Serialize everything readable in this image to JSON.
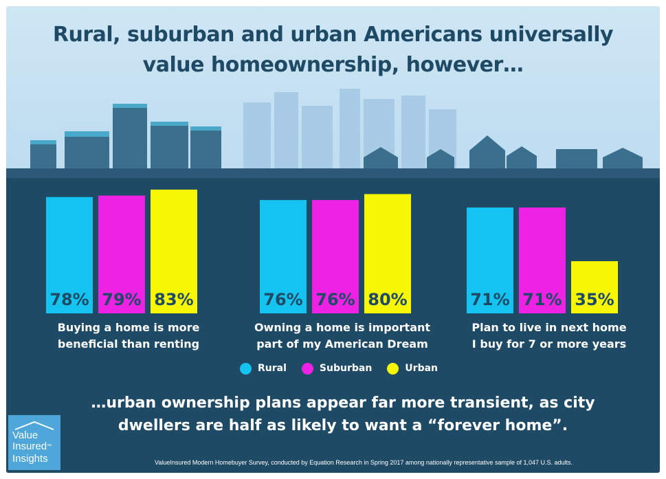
{
  "title": "Rural, suburban and urban Americans universally value homeownership, however…",
  "conclusion": "…urban ownership plans appear far more transient, as city dwellers are half as likely to want a “forever home”.",
  "source": "ValueInsured Modern Homebuyer Survey, conducted by Equation Research in Spring 2017 among nationally representative sample of 1,047 U.S. adults.",
  "logo": {
    "line1": "Value",
    "line2": "Insured",
    "trademark": "™",
    "line3": "Insights"
  },
  "colors": {
    "rural": "#15c3f0",
    "suburban": "#ee22e4",
    "urban": "#f7f703",
    "background": "#1f4a65",
    "sky": "#c8e2f2",
    "text_dark": "#1f4a65"
  },
  "chart_data": {
    "type": "bar",
    "categories": [
      "Buying a home is more beneficial than renting",
      "Owning a home is important part of my American Dream",
      "Plan to live in next home I buy for 7 or more years"
    ],
    "category_lines": [
      [
        "Buying a home is more",
        "beneficial than renting"
      ],
      [
        "Owning a home is important",
        "part of my American Dream"
      ],
      [
        "Plan to live in next home",
        "I buy for 7 or more years"
      ]
    ],
    "series": [
      {
        "name": "Rural",
        "values": [
          78,
          76,
          71
        ]
      },
      {
        "name": "Suburban",
        "values": [
          79,
          76,
          71
        ]
      },
      {
        "name": "Urban",
        "values": [
          83,
          80,
          35
        ]
      }
    ],
    "value_labels": [
      [
        "78%",
        "76%",
        "71%"
      ],
      [
        "79%",
        "76%",
        "71%"
      ],
      [
        "83%",
        "80%",
        "35%"
      ]
    ],
    "unit": "%",
    "legend_position": "bottom",
    "grid": false
  }
}
